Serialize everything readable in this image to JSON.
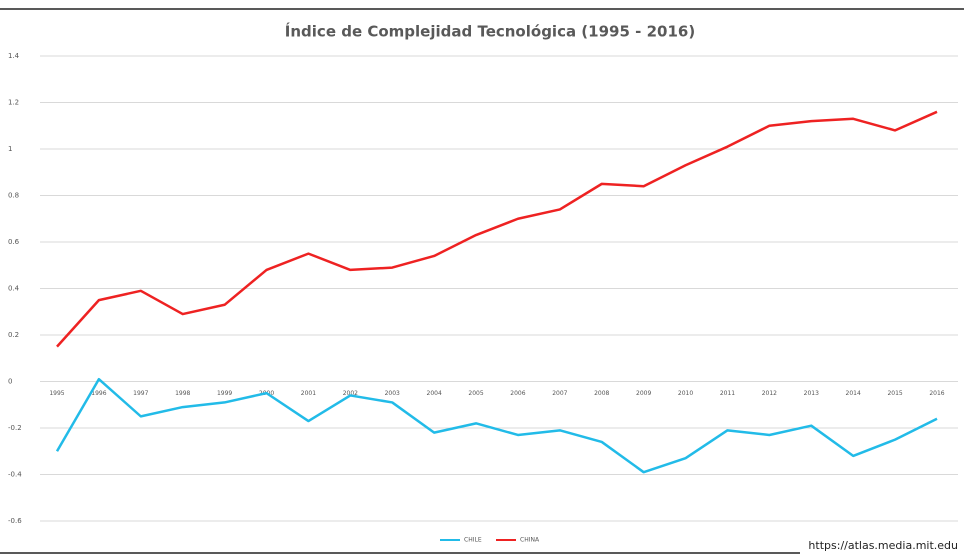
{
  "chart_data": {
    "type": "line",
    "title": "Índice de Complejidad Tecnológica (1995 - 2016)",
    "source": "https://atlas.media.mit.edu",
    "categories": [
      "1995",
      "1996",
      "1997",
      "1998",
      "1999",
      "2000",
      "2001",
      "2002",
      "2003",
      "2004",
      "2005",
      "2006",
      "2007",
      "2008",
      "2009",
      "2010",
      "2011",
      "2012",
      "2013",
      "2014",
      "2015",
      "2016"
    ],
    "series": [
      {
        "name": "CHILE",
        "color": "#22bbe8",
        "values": [
          -0.3,
          0.01,
          -0.15,
          -0.11,
          -0.09,
          -0.05,
          -0.17,
          -0.06,
          -0.09,
          -0.22,
          -0.18,
          -0.23,
          -0.21,
          -0.26,
          -0.39,
          -0.33,
          -0.21,
          -0.23,
          -0.19,
          -0.32,
          -0.25,
          -0.16
        ]
      },
      {
        "name": "CHINA",
        "color": "#ee2222",
        "values": [
          0.15,
          0.35,
          0.39,
          0.29,
          0.33,
          0.48,
          0.55,
          0.48,
          0.49,
          0.54,
          0.63,
          0.7,
          0.74,
          0.85,
          0.84,
          0.93,
          1.01,
          1.1,
          1.12,
          1.13,
          1.08,
          1.16
        ]
      }
    ],
    "ylim": [
      -0.6,
      1.4
    ],
    "yticks": [
      -0.6,
      -0.4,
      -0.2,
      0,
      0.2,
      0.4,
      0.6,
      0.8,
      1,
      1.2,
      1.4
    ],
    "grid": true,
    "legend": "bottom"
  }
}
